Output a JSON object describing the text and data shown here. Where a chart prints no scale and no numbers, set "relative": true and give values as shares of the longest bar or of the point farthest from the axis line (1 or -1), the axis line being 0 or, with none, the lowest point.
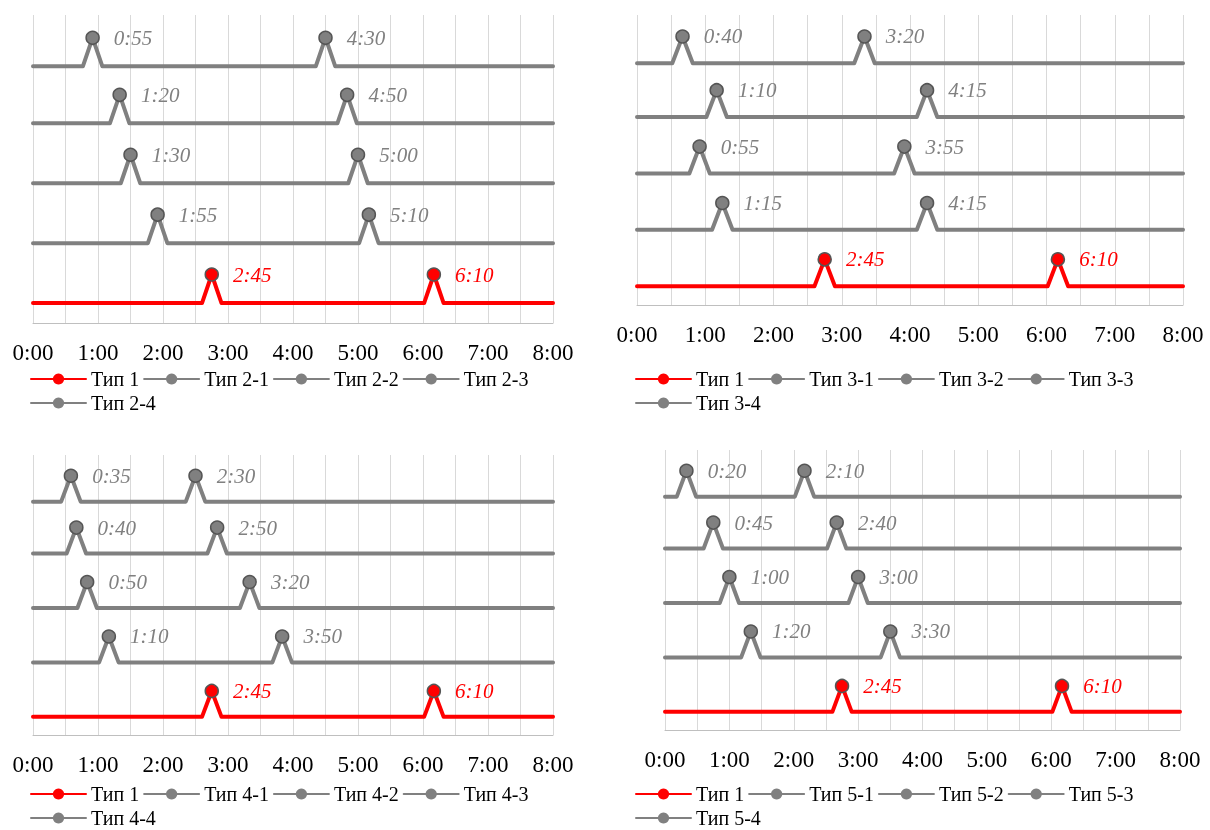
{
  "chart_data": [
    {
      "type": "line",
      "relative": true,
      "xlim": [
        0,
        8
      ],
      "xticks": [
        {
          "value": 0,
          "label": "0:00"
        },
        {
          "value": 1,
          "label": "1:00"
        },
        {
          "value": 2,
          "label": "2:00"
        },
        {
          "value": 3,
          "label": "3:00"
        },
        {
          "value": 4,
          "label": "4:00"
        },
        {
          "value": 5,
          "label": "5:00"
        },
        {
          "value": 6,
          "label": "6:00"
        },
        {
          "value": 7,
          "label": "7:00"
        },
        {
          "value": 8,
          "label": "8:00"
        }
      ],
      "grid": "x",
      "legend": "bottom",
      "series": [
        {
          "name": "Тип 1",
          "color": "#ff0000",
          "x": [
            0,
            2.6,
            2.75,
            2.9,
            6.017,
            6.167,
            6.317,
            8
          ],
          "values": [
            0.07,
            0.07,
            0.17,
            0.07,
            0.07,
            0.17,
            0.07,
            0.07
          ]
        },
        {
          "name": "Тип 2-1",
          "color": "#808080",
          "x": [
            0,
            0.767,
            0.917,
            1.067,
            4.35,
            4.5,
            4.65,
            8
          ],
          "values": [
            0.9,
            0.9,
            1,
            0.9,
            0.9,
            1,
            0.9,
            0.9
          ]
        },
        {
          "name": "Тип 2-2",
          "color": "#808080",
          "x": [
            0,
            1.183,
            1.333,
            1.483,
            4.683,
            4.833,
            4.983,
            8
          ],
          "values": [
            0.7,
            0.7,
            0.8,
            0.7,
            0.7,
            0.8,
            0.7,
            0.7
          ]
        },
        {
          "name": "Тип 2-3",
          "color": "#808080",
          "x": [
            0,
            1.35,
            1.5,
            1.65,
            4.85,
            5,
            5.15,
            8
          ],
          "values": [
            0.49,
            0.49,
            0.59,
            0.49,
            0.49,
            0.59,
            0.49,
            0.49
          ]
        },
        {
          "name": "Тип 2-4",
          "color": "#808080",
          "x": [
            0,
            1.767,
            1.917,
            2.067,
            5.017,
            5.167,
            5.317,
            8
          ],
          "values": [
            0.28,
            0.28,
            0.38,
            0.28,
            0.28,
            0.38,
            0.28,
            0.28
          ]
        }
      ],
      "annotations": [
        {
          "text": "2:45",
          "x": 2.75,
          "y": 0.17
        },
        {
          "text": "6:10",
          "x": 6.167,
          "y": 0.17
        },
        {
          "text": "0:55",
          "x": 0.917,
          "y": 1
        },
        {
          "text": "4:30",
          "x": 4.5,
          "y": 1
        },
        {
          "text": "1:20",
          "x": 1.333,
          "y": 0.8
        },
        {
          "text": "4:50",
          "x": 4.833,
          "y": 0.8
        },
        {
          "text": "1:30",
          "x": 1.5,
          "y": 0.59
        },
        {
          "text": "5:00",
          "x": 5,
          "y": 0.59
        },
        {
          "text": "1:55",
          "x": 1.917,
          "y": 0.38
        },
        {
          "text": "5:10",
          "x": 5.167,
          "y": 0.38
        }
      ]
    },
    {
      "type": "line",
      "relative": true,
      "xlim": [
        0,
        8
      ],
      "xticks": [
        {
          "value": 0,
          "label": "0:00"
        },
        {
          "value": 1,
          "label": "1:00"
        },
        {
          "value": 2,
          "label": "2:00"
        },
        {
          "value": 3,
          "label": "3:00"
        },
        {
          "value": 4,
          "label": "4:00"
        },
        {
          "value": 5,
          "label": "5:00"
        },
        {
          "value": 6,
          "label": "6:00"
        },
        {
          "value": 7,
          "label": "7:00"
        },
        {
          "value": 8,
          "label": "8:00"
        }
      ],
      "grid": "x",
      "legend": "bottom",
      "series": [
        {
          "name": "Тип 1",
          "color": "#ff0000",
          "x": [
            0,
            2.6,
            2.75,
            2.9,
            6.017,
            6.167,
            6.317,
            8
          ],
          "values": [
            0.07,
            0.07,
            0.17,
            0.07,
            0.07,
            0.17,
            0.07,
            0.07
          ]
        },
        {
          "name": "Тип 3-1",
          "color": "#808080",
          "x": [
            0,
            0.517,
            0.667,
            0.817,
            3.183,
            3.333,
            3.483,
            8
          ],
          "values": [
            0.9,
            0.9,
            1,
            0.9,
            0.9,
            1,
            0.9,
            0.9
          ]
        },
        {
          "name": "Тип 3-2",
          "color": "#808080",
          "x": [
            0,
            1.017,
            1.167,
            1.317,
            4.1,
            4.25,
            4.4,
            8
          ],
          "values": [
            0.7,
            0.7,
            0.8,
            0.7,
            0.7,
            0.8,
            0.7,
            0.7
          ]
        },
        {
          "name": "Тип 3-3",
          "color": "#808080",
          "x": [
            0,
            0.767,
            0.917,
            1.067,
            3.767,
            3.917,
            4.067,
            8
          ],
          "values": [
            0.49,
            0.49,
            0.59,
            0.49,
            0.49,
            0.59,
            0.49,
            0.49
          ]
        },
        {
          "name": "Тип 3-4",
          "color": "#808080",
          "x": [
            0,
            1.1,
            1.25,
            1.4,
            4.1,
            4.25,
            4.4,
            8
          ],
          "values": [
            0.28,
            0.28,
            0.38,
            0.28,
            0.28,
            0.38,
            0.28,
            0.28
          ]
        }
      ],
      "annotations": [
        {
          "text": "2:45",
          "x": 2.75,
          "y": 0.17
        },
        {
          "text": "6:10",
          "x": 6.167,
          "y": 0.17
        },
        {
          "text": "0:40",
          "x": 0.667,
          "y": 1
        },
        {
          "text": "3:20",
          "x": 3.333,
          "y": 1
        },
        {
          "text": "1:10",
          "x": 1.167,
          "y": 0.8
        },
        {
          "text": "4:15",
          "x": 4.25,
          "y": 0.8
        },
        {
          "text": "0:55",
          "x": 0.917,
          "y": 0.59
        },
        {
          "text": "3:55",
          "x": 3.917,
          "y": 0.59
        },
        {
          "text": "1:15",
          "x": 1.25,
          "y": 0.38
        },
        {
          "text": "4:15",
          "x": 4.25,
          "y": 0.38
        }
      ]
    },
    {
      "type": "line",
      "relative": true,
      "xlim": [
        0,
        8
      ],
      "xticks": [
        {
          "value": 0,
          "label": "0:00"
        },
        {
          "value": 1,
          "label": "1:00"
        },
        {
          "value": 2,
          "label": "2:00"
        },
        {
          "value": 3,
          "label": "3:00"
        },
        {
          "value": 4,
          "label": "4:00"
        },
        {
          "value": 5,
          "label": "5:00"
        },
        {
          "value": 6,
          "label": "6:00"
        },
        {
          "value": 7,
          "label": "7:00"
        },
        {
          "value": 8,
          "label": "8:00"
        }
      ],
      "grid": "x",
      "legend": "bottom",
      "series": [
        {
          "name": "Тип 1",
          "color": "#ff0000",
          "x": [
            0,
            2.6,
            2.75,
            2.9,
            6.017,
            6.167,
            6.317,
            8
          ],
          "values": [
            0.07,
            0.07,
            0.17,
            0.07,
            0.07,
            0.17,
            0.07,
            0.07
          ]
        },
        {
          "name": "Тип 4-1",
          "color": "#808080",
          "x": [
            0,
            0.433,
            0.583,
            0.733,
            2.35,
            2.5,
            2.65,
            8
          ],
          "values": [
            0.9,
            0.9,
            1,
            0.9,
            0.9,
            1,
            0.9,
            0.9
          ]
        },
        {
          "name": "Тип 4-2",
          "color": "#808080",
          "x": [
            0,
            0.517,
            0.667,
            0.817,
            2.683,
            2.833,
            2.983,
            8
          ],
          "values": [
            0.7,
            0.7,
            0.8,
            0.7,
            0.7,
            0.8,
            0.7,
            0.7
          ]
        },
        {
          "name": "Тип 4-3",
          "color": "#808080",
          "x": [
            0,
            0.683,
            0.833,
            0.983,
            3.183,
            3.333,
            3.483,
            8
          ],
          "values": [
            0.49,
            0.49,
            0.59,
            0.49,
            0.49,
            0.59,
            0.49,
            0.49
          ]
        },
        {
          "name": "Тип 4-4",
          "color": "#808080",
          "x": [
            0,
            1.017,
            1.167,
            1.317,
            3.683,
            3.833,
            3.983,
            8
          ],
          "values": [
            0.28,
            0.28,
            0.38,
            0.28,
            0.28,
            0.38,
            0.28,
            0.28
          ]
        }
      ],
      "annotations": [
        {
          "text": "2:45",
          "x": 2.75,
          "y": 0.17
        },
        {
          "text": "6:10",
          "x": 6.167,
          "y": 0.17
        },
        {
          "text": "0:35",
          "x": 0.583,
          "y": 1
        },
        {
          "text": "2:30",
          "x": 2.5,
          "y": 1
        },
        {
          "text": "0:40",
          "x": 0.667,
          "y": 0.8
        },
        {
          "text": "2:50",
          "x": 2.833,
          "y": 0.8
        },
        {
          "text": "0:50",
          "x": 0.833,
          "y": 0.59
        },
        {
          "text": "3:20",
          "x": 3.333,
          "y": 0.59
        },
        {
          "text": "1:10",
          "x": 1.167,
          "y": 0.38
        },
        {
          "text": "3:50",
          "x": 3.833,
          "y": 0.38
        }
      ]
    },
    {
      "type": "line",
      "relative": true,
      "xlim": [
        0,
        8
      ],
      "xticks": [
        {
          "value": 0,
          "label": "0:00"
        },
        {
          "value": 1,
          "label": "1:00"
        },
        {
          "value": 2,
          "label": "2:00"
        },
        {
          "value": 3,
          "label": "3:00"
        },
        {
          "value": 4,
          "label": "4:00"
        },
        {
          "value": 5,
          "label": "5:00"
        },
        {
          "value": 6,
          "label": "6:00"
        },
        {
          "value": 7,
          "label": "7:00"
        },
        {
          "value": 8,
          "label": "8:00"
        }
      ],
      "grid": "x",
      "legend": "bottom",
      "series": [
        {
          "name": "Тип 1",
          "color": "#ff0000",
          "x": [
            0,
            2.6,
            2.75,
            2.9,
            6.017,
            6.167,
            6.317,
            8
          ],
          "values": [
            0.07,
            0.07,
            0.17,
            0.07,
            0.07,
            0.17,
            0.07,
            0.07
          ]
        },
        {
          "name": "Тип 5-1",
          "color": "#808080",
          "x": [
            0,
            0.183,
            0.333,
            0.483,
            2.017,
            2.167,
            2.317,
            8
          ],
          "values": [
            0.9,
            0.9,
            1,
            0.9,
            0.9,
            1,
            0.9,
            0.9
          ]
        },
        {
          "name": "Тип 5-2",
          "color": "#808080",
          "x": [
            0,
            0.6,
            0.75,
            0.9,
            2.517,
            2.667,
            2.817,
            8
          ],
          "values": [
            0.7,
            0.7,
            0.8,
            0.7,
            0.7,
            0.8,
            0.7,
            0.7
          ]
        },
        {
          "name": "Тип 5-3",
          "color": "#808080",
          "x": [
            0,
            0.85,
            1,
            1.15,
            2.85,
            3,
            3.15,
            8
          ],
          "values": [
            0.49,
            0.49,
            0.59,
            0.49,
            0.49,
            0.59,
            0.49,
            0.49
          ]
        },
        {
          "name": "Тип 5-4",
          "color": "#808080",
          "x": [
            0,
            1.183,
            1.333,
            1.483,
            3.35,
            3.5,
            3.65,
            8
          ],
          "values": [
            0.28,
            0.28,
            0.38,
            0.28,
            0.28,
            0.38,
            0.28,
            0.28
          ]
        }
      ],
      "annotations": [
        {
          "text": "2:45",
          "x": 2.75,
          "y": 0.17
        },
        {
          "text": "6:10",
          "x": 6.167,
          "y": 0.17
        },
        {
          "text": "0:20",
          "x": 0.333,
          "y": 1
        },
        {
          "text": "2:10",
          "x": 2.167,
          "y": 1
        },
        {
          "text": "0:45",
          "x": 0.75,
          "y": 0.8
        },
        {
          "text": "2:40",
          "x": 2.667,
          "y": 0.8
        },
        {
          "text": "1:00",
          "x": 1,
          "y": 0.59
        },
        {
          "text": "3:00",
          "x": 3,
          "y": 0.59
        },
        {
          "text": "1:20",
          "x": 1.333,
          "y": 0.38
        },
        {
          "text": "3:30",
          "x": 3.5,
          "y": 0.38
        }
      ]
    }
  ]
}
